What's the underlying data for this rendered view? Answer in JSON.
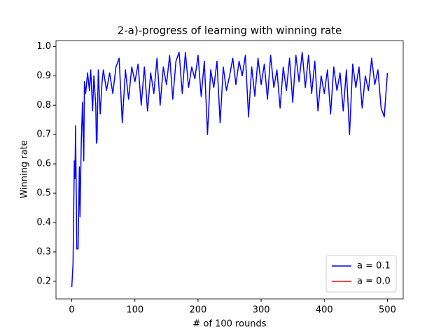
{
  "chart_data": {
    "type": "line",
    "title": "2-a)-progress of learning with winning rate",
    "xlabel": "# of 100 rounds",
    "ylabel": "Winning rate",
    "x": [
      0,
      2,
      4,
      5,
      6,
      8,
      10,
      12,
      13,
      15,
      17,
      19,
      20,
      22,
      25,
      28,
      30,
      33,
      35,
      38,
      39,
      40,
      42,
      45,
      48,
      50,
      55,
      60,
      65,
      70,
      75,
      80,
      85,
      90,
      95,
      100,
      105,
      110,
      115,
      120,
      125,
      130,
      135,
      140,
      145,
      150,
      155,
      160,
      165,
      170,
      175,
      180,
      185,
      190,
      195,
      200,
      205,
      210,
      215,
      220,
      225,
      230,
      235,
      240,
      245,
      250,
      255,
      260,
      265,
      270,
      275,
      280,
      285,
      290,
      295,
      300,
      305,
      310,
      315,
      320,
      325,
      330,
      335,
      340,
      345,
      350,
      355,
      360,
      365,
      370,
      375,
      380,
      385,
      390,
      395,
      400,
      405,
      410,
      415,
      420,
      425,
      430,
      435,
      440,
      445,
      450,
      455,
      460,
      465,
      470,
      475,
      480,
      485,
      490,
      495,
      500
    ],
    "series": [
      {
        "name": "a = 0.1",
        "color": "#0000ff",
        "values": [
          0.18,
          0.26,
          0.61,
          0.55,
          0.73,
          0.31,
          0.31,
          0.59,
          0.42,
          0.67,
          0.81,
          0.61,
          0.88,
          0.84,
          0.91,
          0.85,
          0.92,
          0.78,
          0.9,
          0.8,
          0.67,
          0.68,
          0.92,
          0.77,
          0.88,
          0.92,
          0.85,
          0.91,
          0.84,
          0.93,
          0.96,
          0.74,
          0.92,
          0.82,
          0.93,
          0.88,
          0.94,
          0.8,
          0.93,
          0.78,
          0.91,
          0.84,
          0.96,
          0.8,
          0.93,
          0.87,
          0.97,
          0.82,
          0.95,
          0.98,
          0.84,
          0.98,
          0.86,
          0.93,
          0.89,
          0.97,
          0.83,
          0.95,
          0.7,
          0.92,
          0.86,
          0.95,
          0.74,
          0.93,
          0.85,
          0.9,
          0.96,
          0.87,
          0.95,
          0.9,
          0.97,
          0.76,
          0.93,
          0.83,
          0.96,
          0.87,
          0.94,
          0.82,
          0.97,
          0.86,
          0.92,
          0.79,
          0.93,
          0.85,
          0.96,
          0.81,
          0.97,
          0.88,
          0.98,
          0.86,
          0.97,
          0.84,
          0.95,
          0.78,
          0.9,
          0.84,
          0.92,
          0.77,
          0.93,
          0.85,
          0.91,
          0.78,
          0.92,
          0.7,
          0.94,
          0.86,
          0.93,
          0.79,
          0.9,
          0.85,
          0.96,
          0.87,
          0.92,
          0.79,
          0.76,
          0.91
        ]
      },
      {
        "name": "a = 0.0",
        "color": "#ff0000",
        "values": [
          null,
          null,
          null,
          null,
          null,
          null,
          null,
          null,
          null,
          null,
          null,
          null,
          null,
          null,
          null,
          null,
          null,
          null,
          null,
          null,
          null,
          null,
          null,
          null,
          null,
          null,
          null,
          null,
          null,
          null,
          null,
          null,
          null,
          null,
          null,
          null,
          null,
          null,
          null,
          null,
          null,
          null,
          null,
          null,
          null,
          null,
          null,
          null,
          null,
          null,
          null,
          null,
          null,
          null,
          null,
          null,
          null,
          null,
          null,
          null,
          null,
          null,
          null,
          null,
          null,
          null,
          null,
          null,
          null,
          null,
          null,
          null,
          null,
          null,
          null,
          null,
          null,
          null,
          null,
          null,
          null,
          null,
          null,
          null,
          null,
          null,
          null,
          null,
          null,
          null,
          null,
          null,
          null,
          null,
          null,
          null,
          null,
          null,
          null,
          null,
          null,
          null,
          null,
          null,
          null,
          null,
          null,
          null,
          null,
          null,
          null,
          null,
          null,
          null,
          null,
          null
        ]
      }
    ],
    "xlim": [
      -25,
      525
    ],
    "xticks": [
      0,
      100,
      200,
      300,
      400,
      500
    ],
    "ylim": [
      0.14,
      1.02
    ],
    "yticks": [
      0.2,
      0.3,
      0.4,
      0.5,
      0.6,
      0.7,
      0.8,
      0.9,
      {
        "value": 1,
        "label": "1.0"
      }
    ],
    "legend": "lower right"
  }
}
